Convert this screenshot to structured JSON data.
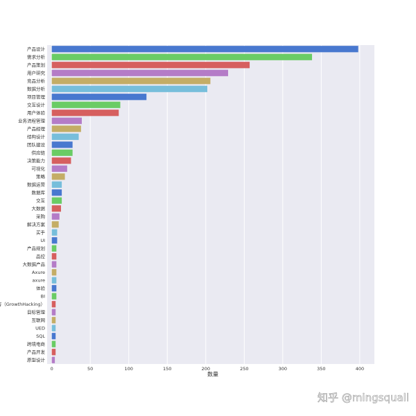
{
  "chart_data": {
    "type": "barh",
    "x_label": "数量",
    "watermark": "知乎 @mingsquall",
    "categories": [
      "产品设计",
      "需求分析",
      "产品策划",
      "用户研究",
      "竞品分析",
      "数据分析",
      "项目管理",
      "交互设计",
      "用户体验",
      "业务流程管理",
      "产品经理",
      "结构设计",
      "团队建设",
      "供应链",
      "决策能力",
      "可视化",
      "策略",
      "数据运营",
      "数据库",
      "交互",
      "大数据",
      "采购",
      "解决方案",
      "买手",
      "UI",
      "产品规划",
      "品控",
      "大数据产品",
      "Axure",
      "axure",
      "体验",
      "BI",
      "增长黑客（GrowthHacking）",
      "目标管理",
      "互联网",
      "UED",
      "SQL",
      "跨境电商",
      "产品开发",
      "原型设计"
    ],
    "values": [
      398,
      338,
      257,
      229,
      206,
      202,
      123,
      89,
      87,
      39,
      38,
      35,
      27,
      27,
      25,
      20,
      17,
      13,
      13,
      13,
      12,
      10,
      9,
      7,
      7,
      6,
      6,
      6,
      6,
      6,
      6,
      6,
      5,
      5,
      5,
      5,
      5,
      5,
      5,
      4
    ],
    "colors": [
      "#4878cf",
      "#6acc65",
      "#d65f5f",
      "#b47cc7",
      "#c4ad66",
      "#77bedb"
    ],
    "xlim": [
      -6,
      419
    ],
    "xticks": [
      0,
      50,
      100,
      150,
      200,
      250,
      300,
      350,
      400
    ],
    "grid": true
  }
}
